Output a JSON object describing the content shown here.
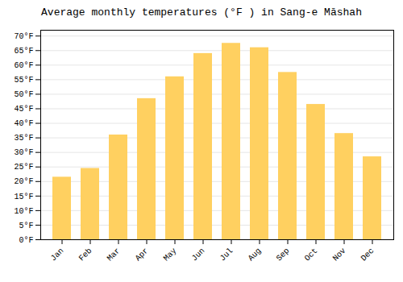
{
  "chart_data": {
    "type": "bar",
    "title": "Average monthly temperatures (°F ) in Sang-e Māshah",
    "categories": [
      "Jan",
      "Feb",
      "Mar",
      "Apr",
      "May",
      "Jun",
      "Jul",
      "Aug",
      "Sep",
      "Oct",
      "Nov",
      "Dec"
    ],
    "values": [
      21.5,
      24.5,
      36.0,
      48.5,
      56.0,
      64.0,
      67.5,
      66.0,
      57.5,
      46.5,
      36.5,
      28.5
    ],
    "color": "#FFD060",
    "ylim": [
      0,
      72
    ],
    "yticks": [
      {
        "value": 0,
        "label": "0°F"
      },
      {
        "value": 5,
        "label": "5°F"
      },
      {
        "value": 10,
        "label": "10°F"
      },
      {
        "value": 15,
        "label": "15°F"
      },
      {
        "value": 20,
        "label": "20°F"
      },
      {
        "value": 25,
        "label": "25°F"
      },
      {
        "value": 30,
        "label": "30°F"
      },
      {
        "value": 35,
        "label": "35°F"
      },
      {
        "value": 40,
        "label": "40°F"
      },
      {
        "value": 45,
        "label": "45°F"
      },
      {
        "value": 50,
        "label": "50°F"
      },
      {
        "value": 55,
        "label": "55°F"
      },
      {
        "value": 60,
        "label": "60°F"
      },
      {
        "value": 65,
        "label": "65°F"
      },
      {
        "value": 70,
        "label": "70°F"
      }
    ],
    "grid": true
  }
}
